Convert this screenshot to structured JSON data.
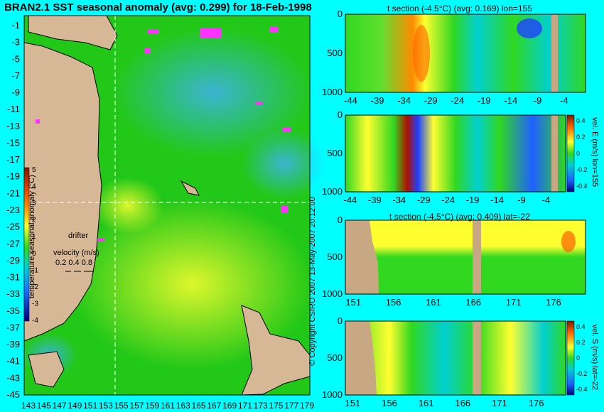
{
  "map": {
    "title": "BRAN2.1 SST seasonal anomaly (avg: 0.299) for 18-Feb-1998",
    "colorbar_label": "temperature seasonal anomaly (°C)",
    "drifter_label": "drifter",
    "velocity_label": "velocity (m/s)",
    "velocity_values": "0.2 0.4 0.8",
    "copyright": "© Copyright CSIRO 2007   13-May-2007 20:12:00",
    "colors": {
      "ocean": "#22c818",
      "land": "#d7b896",
      "drifter": "#ff33ff",
      "section_line": "#ffffff"
    }
  },
  "chart_data": [
    {
      "type": "heatmap",
      "title": "BRAN2.1 SST seasonal anomaly (avg: 0.299) for 18-Feb-1998",
      "xlabel": "",
      "ylabel": "",
      "x_ticks": [
        "143",
        "145",
        "147",
        "149",
        "151",
        "153",
        "155",
        "157",
        "159",
        "161",
        "163",
        "165",
        "167",
        "169",
        "171",
        "173",
        "175",
        "177",
        "179"
      ],
      "y_ticks": [
        "-1",
        "-3",
        "-5",
        "-7",
        "-9",
        "-11",
        "-13",
        "-15",
        "-17",
        "-19",
        "-21",
        "-23",
        "-25",
        "-27",
        "-29",
        "-31",
        "-33",
        "-35",
        "-37",
        "-39",
        "-41",
        "-43",
        "-45"
      ],
      "xlim": [
        143,
        180
      ],
      "ylim": [
        -45,
        0
      ],
      "colorbar": {
        "label": "temperature seasonal anomaly (°C)",
        "ticks": [
          "5",
          "4",
          "3",
          "2",
          "1",
          "0",
          "-1",
          "-2",
          "-3",
          "-4"
        ],
        "range": [
          -4,
          5
        ]
      },
      "section_lines": {
        "lon": 155,
        "lat": -22
      },
      "average": 0.299
    },
    {
      "type": "heatmap",
      "title": "t section (-4.5°C) (avg: 0.169) lon=155",
      "x_ticks": [
        "-44",
        "-39",
        "-34",
        "-29",
        "-24",
        "-19",
        "-14",
        "-9",
        "-4"
      ],
      "y_ticks": [
        "0",
        "500",
        "1000"
      ],
      "xlim": [
        -45,
        0
      ],
      "ylim": [
        1000,
        0
      ],
      "average": 0.169
    },
    {
      "type": "heatmap",
      "title": "",
      "x_ticks": [
        "-44",
        "-39",
        "-34",
        "-29",
        "-24",
        "-19",
        "-14",
        "-9",
        "-4"
      ],
      "y_ticks": [
        "0",
        "500",
        "1000"
      ],
      "xlim": [
        -45,
        0
      ],
      "ylim": [
        1000,
        0
      ],
      "colorbar": {
        "label": "vel. E (m/s) lon=155",
        "ticks": [
          "0.4",
          "0.2",
          "0",
          "-0.2",
          "-0.4"
        ],
        "range": [
          -0.4,
          0.4
        ]
      }
    },
    {
      "type": "heatmap",
      "title": "t section (-4.5°C) (avg: 0.409) lat=-22",
      "x_ticks": [
        "151",
        "156",
        "161",
        "166",
        "171",
        "176"
      ],
      "y_ticks": [
        "0",
        "500",
        "1000"
      ],
      "xlim": [
        150,
        180
      ],
      "ylim": [
        1000,
        0
      ],
      "average": 0.409
    },
    {
      "type": "heatmap",
      "title": "",
      "x_ticks": [
        "151",
        "156",
        "161",
        "166",
        "171",
        "176"
      ],
      "y_ticks": [
        "0",
        "500",
        "1000"
      ],
      "xlim": [
        150,
        180
      ],
      "ylim": [
        1000,
        0
      ],
      "colorbar": {
        "label": "vel. S (m/s) lat=-22",
        "ticks": [
          "0.4",
          "0.2",
          "0",
          "-0.2",
          "-0.4"
        ],
        "range": [
          -0.4,
          0.4
        ]
      }
    }
  ]
}
